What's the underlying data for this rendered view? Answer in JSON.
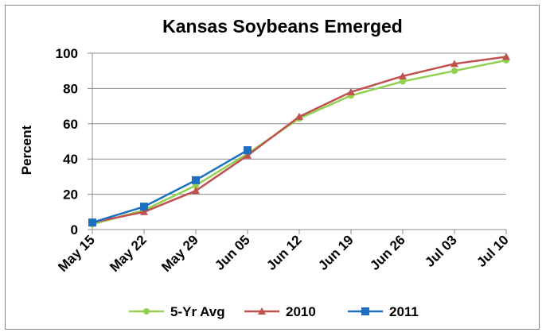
{
  "chart_data": {
    "type": "line",
    "title": "Kansas Soybeans Emerged",
    "xlabel": "",
    "ylabel": "Percent",
    "ylim": [
      0,
      100
    ],
    "yticks": [
      0,
      20,
      40,
      60,
      80,
      100
    ],
    "grid": true,
    "legend_position": "bottom",
    "categories": [
      "May 15",
      "May 22",
      "May 29",
      "Jun 05",
      "Jun 12",
      "Jun 19",
      "Jun 26",
      "Jul 03",
      "Jul 10"
    ],
    "series": [
      {
        "name": "5-Yr Avg",
        "color": "#92d050",
        "marker": "circle",
        "values": [
          3,
          11,
          25,
          43,
          63,
          76,
          84,
          90,
          96
        ]
      },
      {
        "name": "2010",
        "color": "#c0504d",
        "marker": "triangle",
        "values": [
          4,
          10,
          22,
          42,
          64,
          78,
          87,
          94,
          98
        ]
      },
      {
        "name": "2011",
        "color": "#1f6fc0",
        "marker": "square",
        "values": [
          4,
          13,
          28,
          45,
          null,
          null,
          null,
          null,
          null
        ]
      }
    ]
  }
}
